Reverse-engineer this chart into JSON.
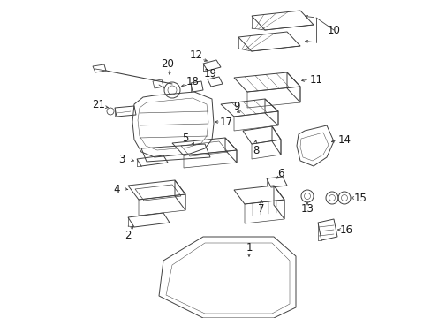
{
  "background_color": "#ffffff",
  "line_color": "#404040",
  "text_color": "#1a1a1a",
  "figsize": [
    4.89,
    3.6
  ],
  "dpi": 100,
  "label_fontsize": 8.5,
  "leader_lw": 0.6,
  "part_lw": 0.7
}
